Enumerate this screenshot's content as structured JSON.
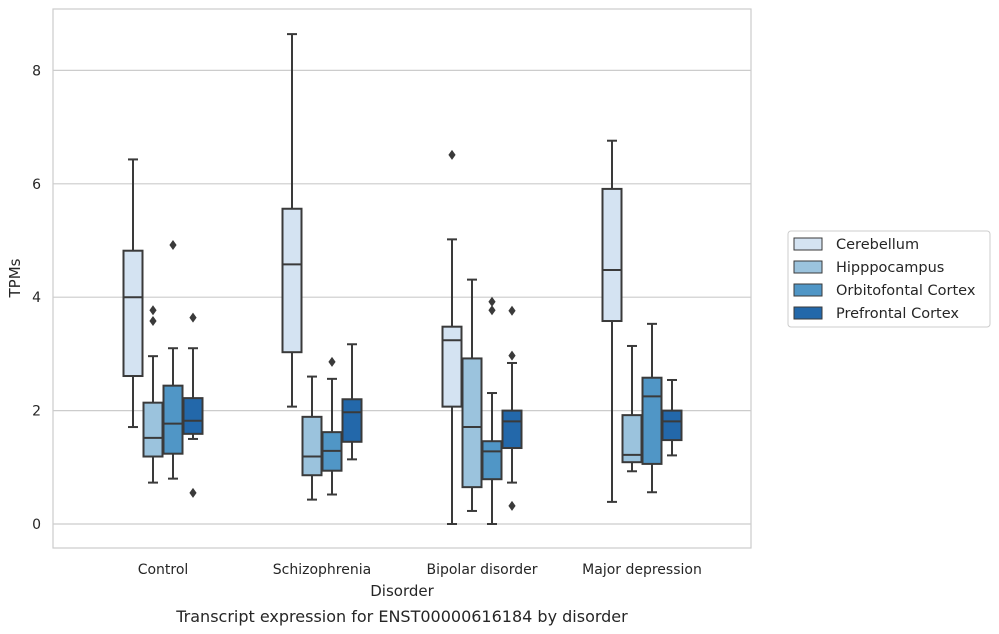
{
  "chart_data": {
    "type": "box",
    "title": "",
    "caption": "Transcript expression for ENST00000616184 by disorder",
    "xlabel": "Disorder",
    "ylabel": "TPMs",
    "ylim": [
      -0.4,
      9.1
    ],
    "yticks": [
      0,
      2,
      4,
      6,
      8
    ],
    "grid": "horizontal",
    "legend_position": "right",
    "categories": [
      "Control",
      "Schizophrenia",
      "Bipolar disorder",
      "Major depression"
    ],
    "series": [
      {
        "name": "Cerebellum",
        "color": "#d4e3f2",
        "boxes": [
          {
            "whislo": 1.71,
            "q1": 2.61,
            "med": 4.0,
            "q3": 4.82,
            "whishi": 6.43,
            "fliers": []
          },
          {
            "whislo": 2.07,
            "q1": 3.03,
            "med": 4.58,
            "q3": 5.56,
            "whishi": 8.64,
            "fliers": []
          },
          {
            "whislo": 0.0,
            "q1": 2.07,
            "med": 3.24,
            "q3": 3.48,
            "whishi": 5.02,
            "fliers": [
              6.51
            ]
          },
          {
            "whislo": 0.39,
            "q1": 3.58,
            "med": 4.48,
            "q3": 5.91,
            "whishi": 6.76,
            "fliers": []
          }
        ]
      },
      {
        "name": "Hipppocampus",
        "color": "#9bc3dd",
        "boxes": [
          {
            "whislo": 0.73,
            "q1": 1.19,
            "med": 1.52,
            "q3": 2.14,
            "whishi": 2.96,
            "fliers": [
              3.58,
              3.77
            ]
          },
          {
            "whislo": 0.43,
            "q1": 0.86,
            "med": 1.19,
            "q3": 1.89,
            "whishi": 2.6,
            "fliers": []
          },
          {
            "whislo": 0.23,
            "q1": 0.65,
            "med": 1.71,
            "q3": 2.92,
            "whishi": 4.31,
            "fliers": []
          },
          {
            "whislo": 0.93,
            "q1": 1.09,
            "med": 1.22,
            "q3": 1.92,
            "whishi": 3.14,
            "fliers": []
          }
        ]
      },
      {
        "name": "Orbitofontal Cortex",
        "color": "#5096c6",
        "boxes": [
          {
            "whislo": 0.8,
            "q1": 1.24,
            "med": 1.77,
            "q3": 2.44,
            "whishi": 3.1,
            "fliers": [
              4.92
            ]
          },
          {
            "whislo": 0.52,
            "q1": 0.94,
            "med": 1.29,
            "q3": 1.62,
            "whishi": 2.56,
            "fliers": [
              2.86
            ]
          },
          {
            "whislo": 0.0,
            "q1": 0.79,
            "med": 1.28,
            "q3": 1.46,
            "whishi": 2.31,
            "fliers": [
              3.77,
              3.92
            ]
          },
          {
            "whislo": 0.56,
            "q1": 1.06,
            "med": 2.25,
            "q3": 2.58,
            "whishi": 3.53,
            "fliers": []
          }
        ]
      },
      {
        "name": "Prefrontal Cortex",
        "color": "#2368aa",
        "boxes": [
          {
            "whislo": 1.5,
            "q1": 1.59,
            "med": 1.82,
            "q3": 2.22,
            "whishi": 3.1,
            "fliers": [
              0.55,
              3.64
            ]
          },
          {
            "whislo": 1.14,
            "q1": 1.45,
            "med": 1.97,
            "q3": 2.2,
            "whishi": 3.17,
            "fliers": []
          },
          {
            "whislo": 0.73,
            "q1": 1.34,
            "med": 1.81,
            "q3": 2.0,
            "whishi": 2.84,
            "fliers": [
              0.32,
              2.97,
              3.76
            ]
          },
          {
            "whislo": 1.21,
            "q1": 1.48,
            "med": 1.81,
            "q3": 2.0,
            "whishi": 2.54,
            "fliers": []
          }
        ]
      }
    ]
  }
}
